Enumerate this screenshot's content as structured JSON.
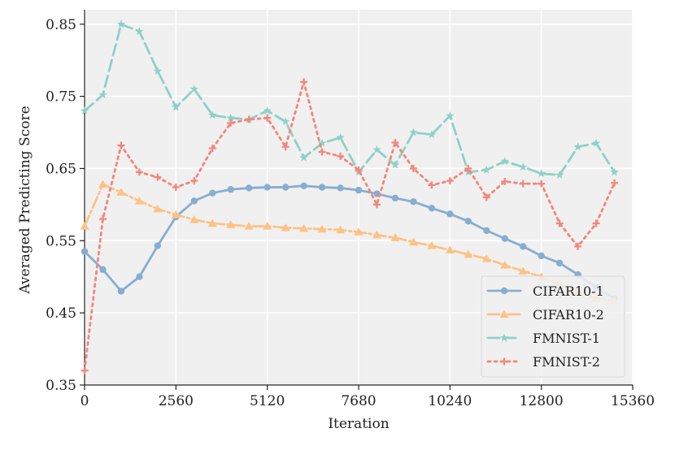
{
  "chart_data": {
    "type": "line",
    "xlabel": "Iteration",
    "ylabel": "Averaged Predicting Score",
    "xlim": [
      0,
      15360
    ],
    "ylim": [
      0.35,
      0.87
    ],
    "xticks": [
      0,
      2560,
      5120,
      7680,
      10240,
      12800,
      15360
    ],
    "xtick_labels": [
      "0",
      "2560",
      "5120",
      "7680",
      "10240",
      "12800",
      "15360"
    ],
    "yticks": [
      0.35,
      0.45,
      0.55,
      0.65,
      0.75,
      0.85
    ],
    "ytick_labels": [
      "0.35",
      "0.45",
      "0.55",
      "0.65",
      "0.75",
      "0.85"
    ],
    "grid": true,
    "legend_position": "lower-right",
    "x": [
      0,
      512,
      1024,
      1536,
      2048,
      2560,
      3072,
      3584,
      4096,
      4608,
      5120,
      5632,
      6144,
      6656,
      7168,
      7680,
      8192,
      8704,
      9216,
      9728,
      10240,
      10752,
      11264,
      11776,
      12288,
      12800,
      13312,
      13824,
      14336,
      14848
    ],
    "series": [
      {
        "name": "CIFAR10-1",
        "color": "#86aed1",
        "dash": "",
        "marker": "circle",
        "values": [
          0.535,
          0.51,
          0.48,
          0.5,
          0.543,
          0.583,
          0.605,
          0.616,
          0.621,
          0.623,
          0.624,
          0.624,
          0.626,
          0.624,
          0.623,
          0.62,
          0.615,
          0.609,
          0.604,
          0.595,
          0.587,
          0.577,
          0.564,
          0.553,
          0.542,
          0.529,
          0.519,
          0.503,
          0.485,
          0.47
        ]
      },
      {
        "name": "CIFAR10-2",
        "color": "#fdc285",
        "dash": "14 4 3 4",
        "marker": "triangle",
        "values": [
          0.57,
          0.628,
          0.617,
          0.605,
          0.594,
          0.586,
          0.579,
          0.574,
          0.572,
          0.57,
          0.57,
          0.568,
          0.567,
          0.566,
          0.565,
          0.562,
          0.558,
          0.554,
          0.548,
          0.543,
          0.537,
          0.531,
          0.525,
          0.516,
          0.508,
          0.5,
          0.49,
          0.48,
          0.47,
          0.467
        ]
      },
      {
        "name": "FMNIST-1",
        "color": "#8ed1c8",
        "dash": "14 6",
        "marker": "star",
        "values": [
          0.73,
          0.752,
          0.85,
          0.84,
          0.785,
          0.735,
          0.76,
          0.724,
          0.72,
          0.718,
          0.73,
          0.715,
          0.665,
          0.685,
          0.693,
          0.645,
          0.676,
          0.655,
          0.7,
          0.697,
          0.723,
          0.645,
          0.648,
          0.66,
          0.652,
          0.643,
          0.641,
          0.68,
          0.685,
          0.645
        ]
      },
      {
        "name": "FMNIST-2",
        "color": "#f4857a",
        "dash": "3 5",
        "marker": "plus",
        "values": [
          0.37,
          0.58,
          0.682,
          0.645,
          0.638,
          0.624,
          0.633,
          0.678,
          0.713,
          0.718,
          0.72,
          0.68,
          0.77,
          0.673,
          0.667,
          0.648,
          0.6,
          0.686,
          0.65,
          0.627,
          0.633,
          0.65,
          0.61,
          0.632,
          0.629,
          0.629,
          0.574,
          0.542,
          0.574,
          0.63
        ]
      }
    ]
  }
}
